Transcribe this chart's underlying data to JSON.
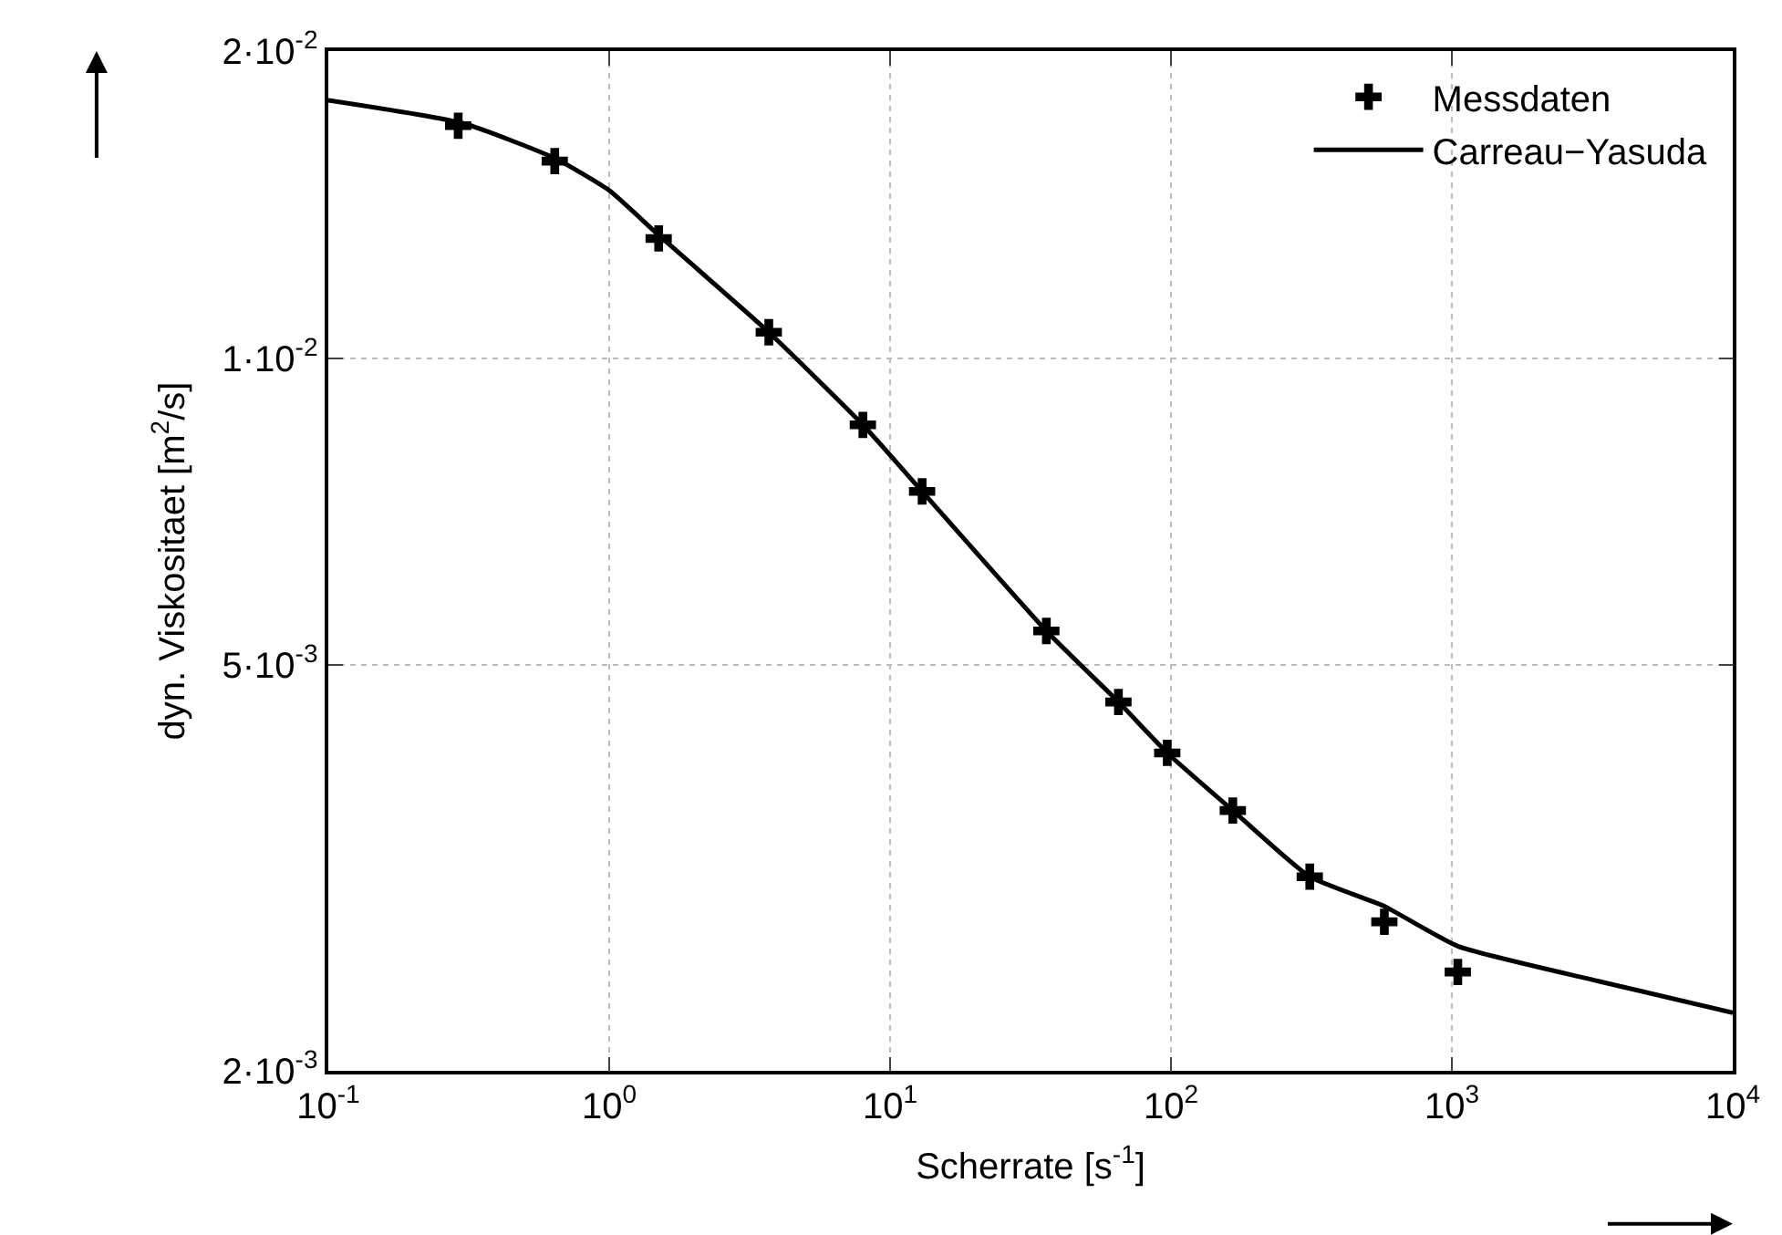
{
  "chart_data": {
    "type": "scatter",
    "xlabel": "Scherrate [s$^{-1}$]",
    "ylabel": "dyn. Viskositaet [m$^{2}$/s]",
    "log": "xy",
    "grid": true,
    "legend": "top right",
    "xlim": [
      0.1,
      10000
    ],
    "ylim": [
      0.002,
      0.02
    ],
    "xticks": [
      {
        "value": 0.1,
        "label": "10$^{-1}$"
      },
      {
        "value": 1,
        "label": "10$^{0}$"
      },
      {
        "value": 10,
        "label": "10$^{1}$"
      },
      {
        "value": 100,
        "label": "10$^{2}$"
      },
      {
        "value": 1000,
        "label": "10$^{3}$"
      },
      {
        "value": 10000,
        "label": "10$^{4}$"
      }
    ],
    "yticks": [
      {
        "value": 0.002,
        "label": "2·10$^{-3}$"
      },
      {
        "value": 0.005,
        "label": "5·10$^{-3}$"
      },
      {
        "value": 0.01,
        "label": "1·10$^{-2}$"
      },
      {
        "value": 0.02,
        "label": "2·10$^{-2}$"
      }
    ],
    "series": [
      {
        "name": "Messdaten",
        "marker": "cross",
        "color": "#000000",
        "x": [
          0.29,
          0.64,
          1.5,
          3.7,
          8,
          13,
          36,
          65,
          97,
          166,
          312,
          575,
          1050
        ],
        "values": [
          0.0169,
          0.0156,
          0.0131,
          0.0106,
          0.0086,
          0.0074,
          0.0054,
          0.0046,
          0.0041,
          0.0036,
          0.0031,
          0.0028,
          0.0025
        ]
      },
      {
        "name": "Carreau−Yasuda",
        "type": "line",
        "marker": "none",
        "line_style": "solid",
        "color": "#000000",
        "x": [
          0.1,
          0.3,
          0.64,
          1,
          1.5,
          3.7,
          8,
          13,
          36,
          65,
          97,
          166,
          312,
          575,
          1050,
          3300,
          10000
        ],
        "values": [
          0.0179,
          0.017,
          0.0157,
          0.0146,
          0.0132,
          0.0106,
          0.0086,
          0.0074,
          0.0054,
          0.0046,
          0.0041,
          0.0036,
          0.0031,
          0.0029,
          0.00265,
          0.00245,
          0.00228
        ]
      }
    ]
  }
}
